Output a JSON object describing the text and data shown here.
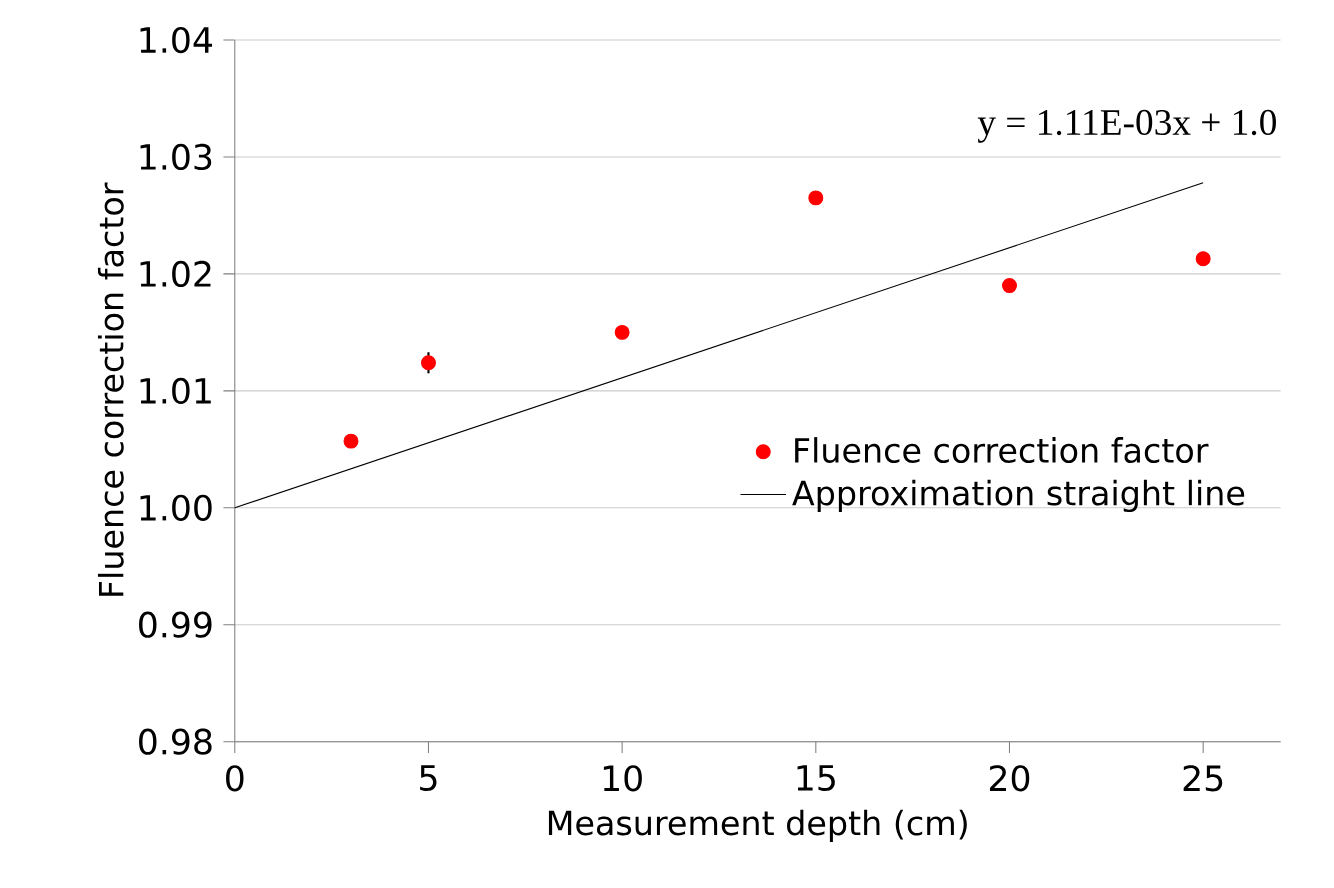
{
  "chart_data": {
    "type": "scatter",
    "xlabel": "Measurement depth (cm)",
    "ylabel": "Fluence correction factor",
    "xlim": [
      0,
      27
    ],
    "xticks": [
      0,
      5,
      10,
      15,
      20,
      25
    ],
    "ylim": [
      0.98,
      1.04
    ],
    "yticks": [
      {
        "value": 0.98,
        "label": "0.98"
      },
      {
        "value": 0.99,
        "label": "0.99"
      },
      {
        "value": 1.0,
        "label": "1.00"
      },
      {
        "value": 1.01,
        "label": "1.01"
      },
      {
        "value": 1.02,
        "label": "1.02"
      },
      {
        "value": 1.03,
        "label": "1.03"
      },
      {
        "value": 1.04,
        "label": "1.04"
      }
    ],
    "grid": "y",
    "legend": "right",
    "marker": "circle",
    "series": [
      {
        "name": "Fluence correction factor",
        "color": "#ff0000",
        "x": [
          3,
          5,
          10,
          15,
          20,
          25
        ],
        "values": [
          1.0057,
          1.0124,
          1.015,
          1.0265,
          1.019,
          1.0213
        ],
        "errors": [
          null,
          0.0009,
          null,
          null,
          null,
          null
        ]
      },
      {
        "name": "Approximation straight line",
        "type": "line",
        "color": "#000000",
        "marker": "none",
        "x": [
          0,
          25
        ],
        "values": [
          1.0,
          1.0278
        ]
      }
    ],
    "annotations": [
      "y = 1.11E-03x + 1.0"
    ]
  }
}
